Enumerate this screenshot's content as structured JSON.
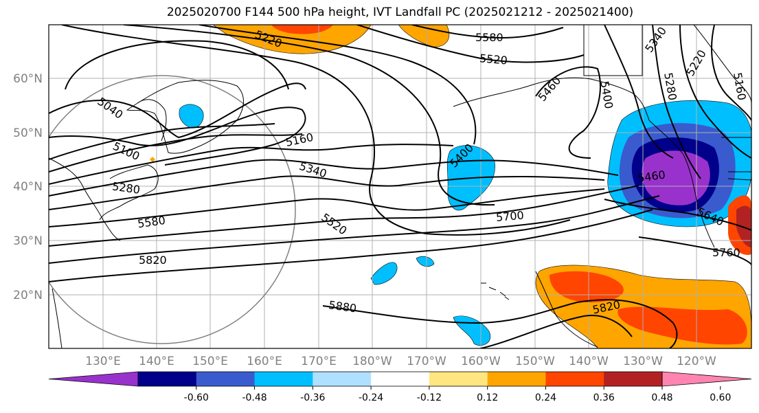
{
  "title": "2025020700 F144 500 hPa height, IVT Landfall PC (2025021212 - 2025021400)",
  "map": {
    "lon_labels": [
      "130°E",
      "140°E",
      "150°E",
      "160°E",
      "170°E",
      "180°W",
      "170°W",
      "160°W",
      "150°W",
      "140°W",
      "130°W",
      "120°W"
    ],
    "lat_labels": [
      "60°N",
      "50°N",
      "40°N",
      "30°N",
      "20°N"
    ],
    "contour_labels": [
      {
        "text": "5220"
      },
      {
        "text": "5580"
      },
      {
        "text": "5520"
      },
      {
        "text": "5460"
      },
      {
        "text": "5400"
      },
      {
        "text": "5340"
      },
      {
        "text": "5280"
      },
      {
        "text": "5220"
      },
      {
        "text": "5160"
      },
      {
        "text": "5040"
      },
      {
        "text": "5100"
      },
      {
        "text": "5280"
      },
      {
        "text": "5580"
      },
      {
        "text": "5160"
      },
      {
        "text": "5340"
      },
      {
        "text": "5400"
      },
      {
        "text": "5520"
      },
      {
        "text": "5700"
      },
      {
        "text": "5820"
      },
      {
        "text": "5880"
      },
      {
        "text": "5460"
      },
      {
        "text": "5640"
      },
      {
        "text": "5760"
      },
      {
        "text": "5820"
      }
    ]
  },
  "colorbar": {
    "colors": [
      "#9932cc",
      "#00008b",
      "#3a5bcd",
      "#00bfff",
      "#b0e0ff",
      "#ffffff",
      "#ffe680",
      "#ffa500",
      "#ff4500",
      "#b22222",
      "#ff85b0"
    ],
    "tick_labels": [
      "-0.60",
      "-0.48",
      "-0.36",
      "-0.24",
      "-0.12",
      "0.12",
      "0.24",
      "0.36",
      "0.48",
      "0.60"
    ]
  }
}
